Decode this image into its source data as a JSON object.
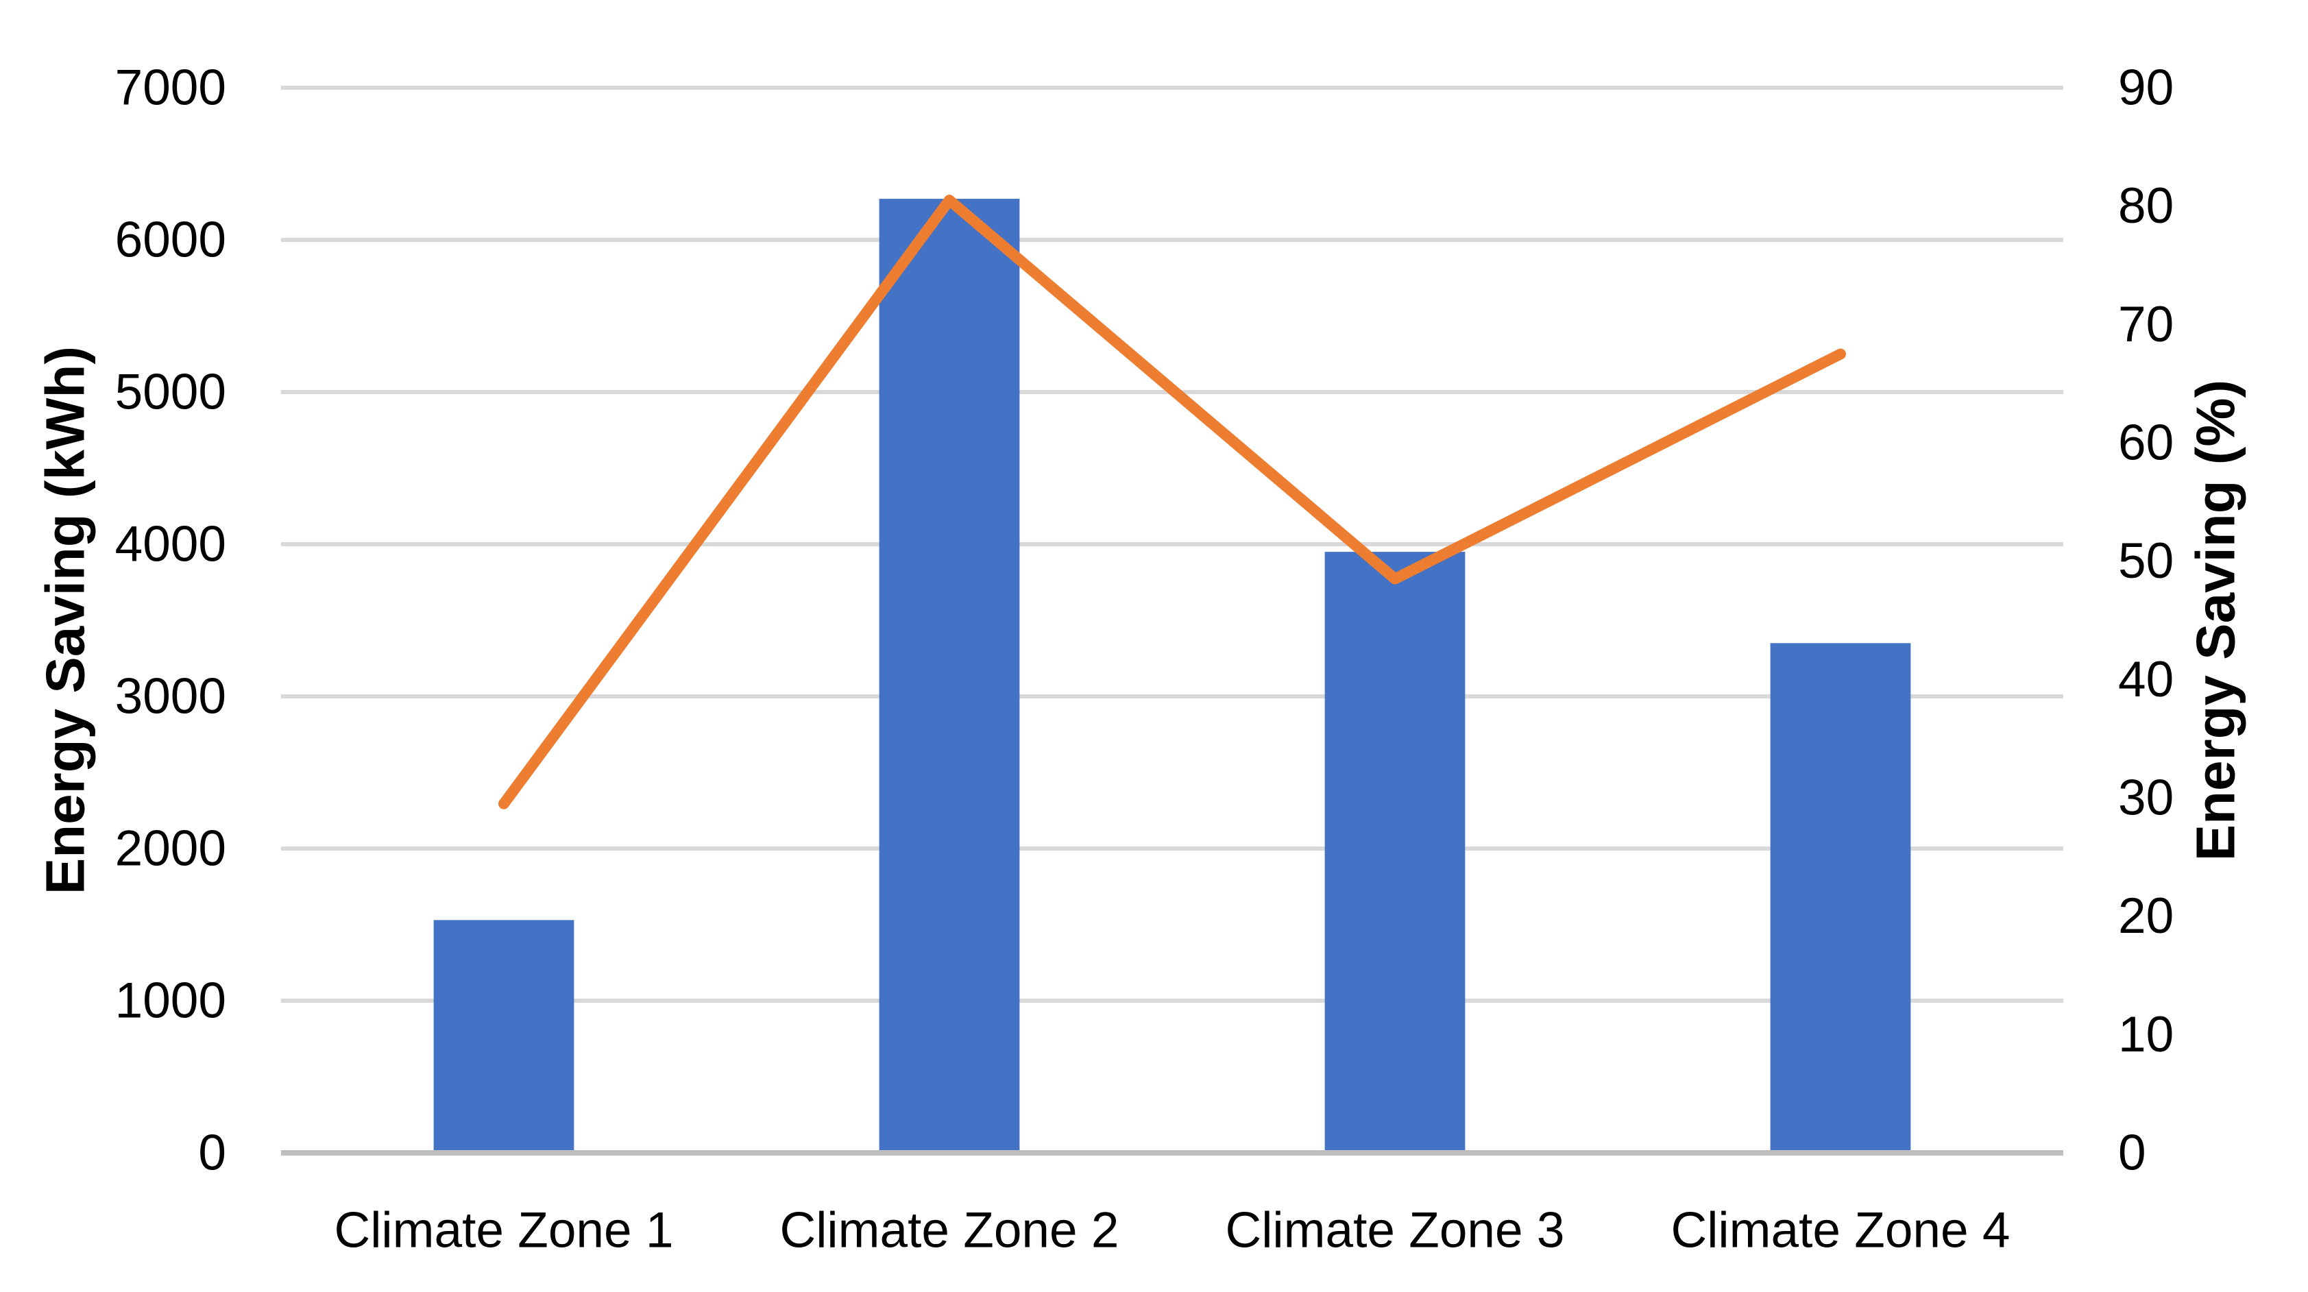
{
  "chart_data": {
    "type": "combo-bar-line",
    "title": "",
    "categories": [
      "Climate Zone 1",
      "Climate Zone 2",
      "Climate Zone 3",
      "Climate Zone 4"
    ],
    "series": [
      {
        "name": "Energy Saving (kWh)",
        "type": "bar",
        "axis": "left",
        "color": "#4472C4",
        "values": [
          1530,
          6270,
          3950,
          3350
        ]
      },
      {
        "name": "Energy Saving (%)",
        "type": "line",
        "axis": "right",
        "color": "#ED7D31",
        "values": [
          29.5,
          80.5,
          48.5,
          67.5
        ]
      }
    ],
    "left_axis": {
      "title": "Energy Saving (kWh)",
      "min": 0,
      "max": 7000,
      "step": 1000,
      "ticks": [
        0,
        1000,
        2000,
        3000,
        4000,
        5000,
        6000,
        7000
      ]
    },
    "right_axis": {
      "title": "Energy Saving (%)",
      "min": 0,
      "max": 90,
      "step": 10,
      "ticks": [
        0,
        10,
        20,
        30,
        40,
        50,
        60,
        70,
        80,
        90
      ]
    },
    "grid": true,
    "legend": false,
    "colors": {
      "bar": "#4472C4",
      "line": "#ED7D31",
      "gridline": "#D9D9D9",
      "axis_line": "#BFBFBF",
      "text": "#000000",
      "background": "#FFFFFF"
    }
  }
}
